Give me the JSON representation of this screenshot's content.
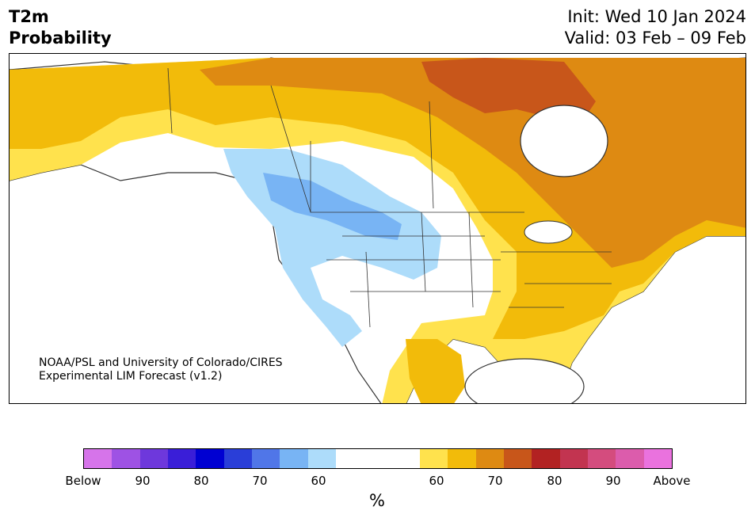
{
  "header": {
    "title_line1": "T2m",
    "title_line2": "Probability",
    "init": "Init: Wed 10 Jan 2024",
    "valid": "Valid: 03 Feb – 09 Feb"
  },
  "map": {
    "credit_line1": "NOAA/PSL and University of Colorado/CIRES",
    "credit_line2": "Experimental LIM Forecast (v1.2)",
    "colors": {
      "ocean": "#ffffff",
      "below_60": "#addcfa",
      "below_70": "#78b4f4",
      "above_60": "#ffe24d",
      "above_70": "#f2bb0a",
      "above_80": "#de8a12",
      "above_90": "#c8561a",
      "border": "#333333"
    }
  },
  "colorbar": {
    "colors_below": [
      "#d674ea",
      "#9e52e4",
      "#6e38dc",
      "#3a1ed8",
      "#0000d2",
      "#2a3ed8",
      "#5076e8",
      "#78b4f4",
      "#addcfa"
    ],
    "color_neutral": "#ffffff",
    "colors_above": [
      "#ffe24d",
      "#f2bb0a",
      "#de8a12",
      "#c8561a",
      "#b22222",
      "#c23450",
      "#d44c7e",
      "#dc5cac",
      "#ea72de"
    ],
    "tick_labels": [
      "Below",
      "90",
      "80",
      "70",
      "60",
      "60",
      "70",
      "80",
      "90",
      "Above"
    ],
    "unit": "%"
  }
}
